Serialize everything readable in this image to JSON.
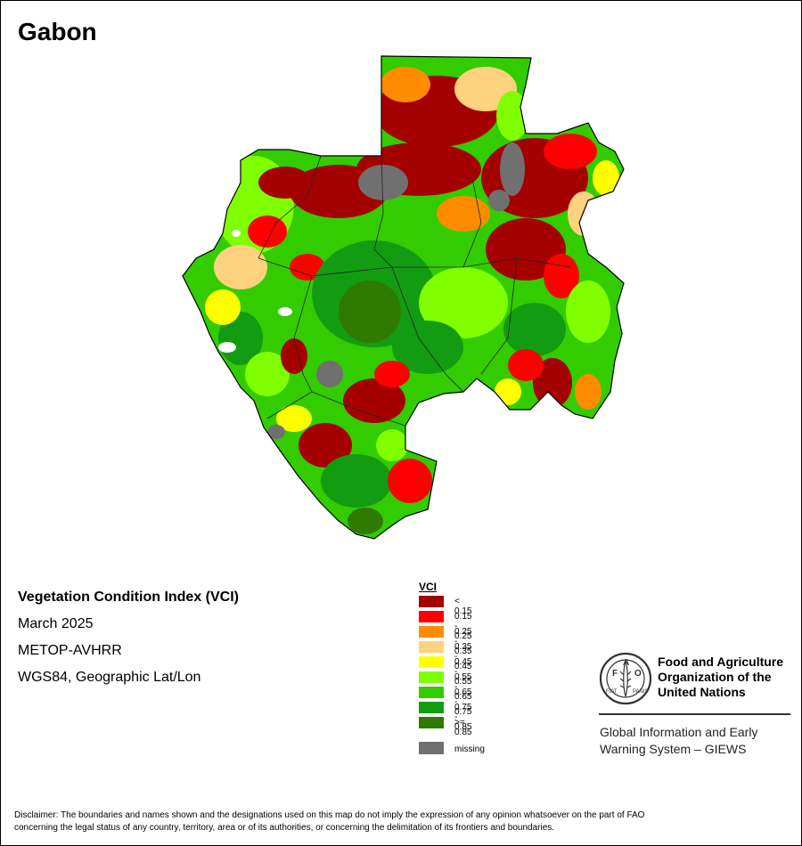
{
  "map": {
    "title": "Gabon"
  },
  "info": {
    "heading": "Vegetation Condition Index (VCI)",
    "date": "March 2025",
    "sensor": "METOP-AVHRR",
    "projection": "WGS84, Geographic Lat/Lon"
  },
  "legend": {
    "title": "VCI",
    "classes": [
      {
        "label": "< 0.15",
        "color": "#a50000"
      },
      {
        "label": "0.15 - 0.25",
        "color": "#ff0000"
      },
      {
        "label": "0.25 - 0.35",
        "color": "#ff8c00"
      },
      {
        "label": "0.35 - 0.45",
        "color": "#ffd27f"
      },
      {
        "label": "0.45 - 0.55",
        "color": "#ffff00"
      },
      {
        "label": "0.55 - 0.65",
        "color": "#7fff00"
      },
      {
        "label": "0.65 - 0.75",
        "color": "#33cc00"
      },
      {
        "label": "0.75 - 0.85",
        "color": "#129c12"
      },
      {
        "label": ">= 0.85",
        "color": "#2f7a00"
      }
    ],
    "missing": {
      "label": "missing",
      "color": "#707070"
    }
  },
  "organization": {
    "name_line1": "Food and Agriculture",
    "name_line2": "Organization of the",
    "name_line3": "United Nations",
    "logo_letters": "FAO",
    "logo_motto_left": "FIAT",
    "logo_motto_right": "PANIS",
    "system_line1": "Global Information and Early",
    "system_line2": "Warning System – GIEWS"
  },
  "disclaimer": {
    "line1": "Disclaimer: The boundaries and names shown and the designations used on this map do not imply the expression of any opinion whatsoever on the part of FAO",
    "line2": "concerning the legal status of any country, territory, area or of its authorities, or concerning the delimitation of its frontiers and boundaries."
  }
}
